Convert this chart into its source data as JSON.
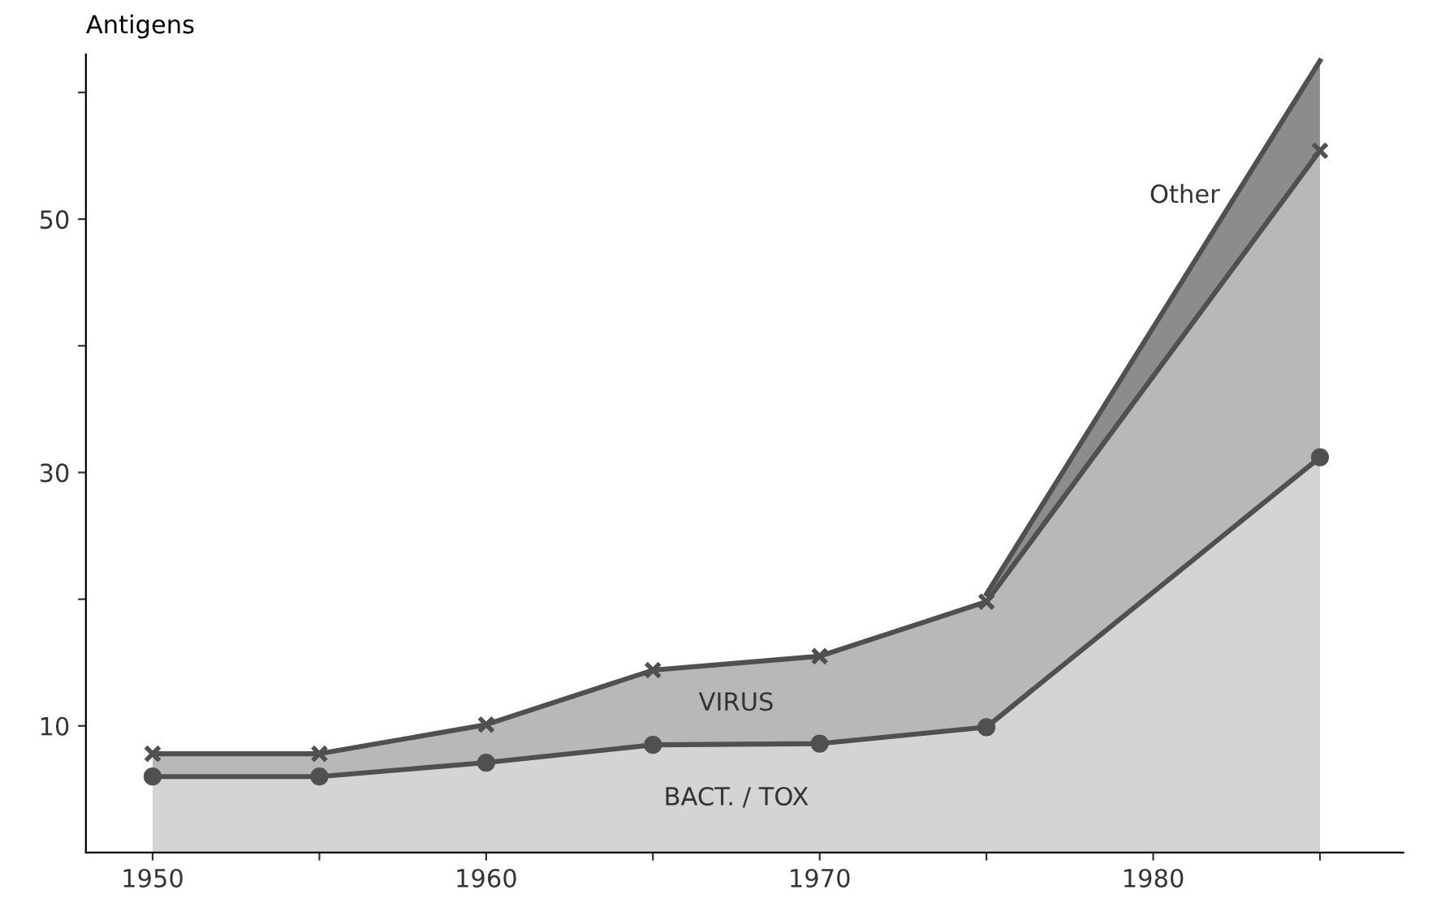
{
  "chart_data": {
    "type": "area",
    "stacked": true,
    "ylabel": "Antigens",
    "x": [
      1950,
      1955,
      1960,
      1965,
      1970,
      1975,
      1985
    ],
    "series": [
      {
        "name": "BACT. / TOX",
        "color": "#d4d4d4",
        "marker": "circle",
        "values": [
          6.0,
          6.0,
          7.1,
          8.5,
          8.6,
          9.9,
          31.2
        ]
      },
      {
        "name": "VIRUS",
        "color": "#b8b8b8",
        "marker": "cross",
        "values": [
          1.8,
          1.8,
          3.0,
          5.9,
          6.9,
          9.9,
          24.2
        ]
      },
      {
        "name": "Other",
        "color": "#8c8c8c",
        "marker": "none",
        "values": [
          null,
          null,
          null,
          null,
          null,
          0.6,
          7.1
        ]
      }
    ],
    "xlim": [
      1948,
      1987.5
    ],
    "xticks": [
      1950,
      {
        "value": 1955,
        "label": null
      },
      1960,
      {
        "value": 1965,
        "label": null
      },
      1970,
      {
        "value": 1975,
        "label": null
      },
      1980,
      {
        "value": 1985,
        "label": null
      }
    ],
    "ylim": [
      0,
      63
    ],
    "yticks": [
      10,
      {
        "value": 20,
        "label": null
      },
      30,
      {
        "value": 40,
        "label": null
      },
      50,
      {
        "value": 60,
        "label": null
      }
    ],
    "grid": false,
    "legend": false
  }
}
